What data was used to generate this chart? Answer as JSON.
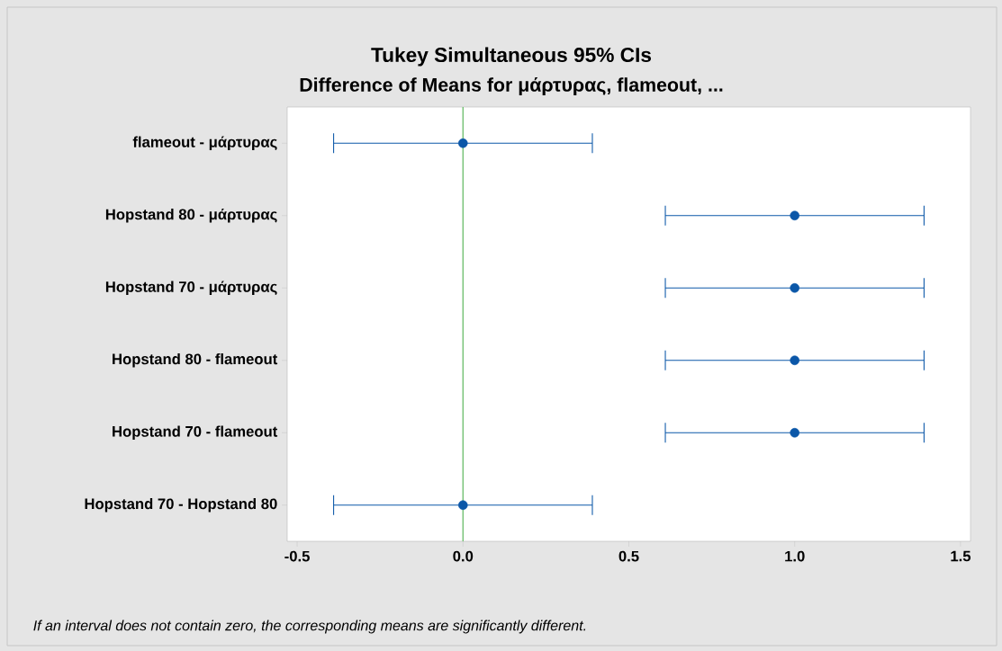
{
  "chart_data": {
    "type": "scatter",
    "orientation": "horizontal",
    "title": "Tukey Simultaneous 95% CIs",
    "subtitle": "Difference of Means for μάρτυρας, flameout, ...",
    "categories": [
      "flameout - μάρτυρας",
      "Hopstand 80 - μάρτυρας",
      "Hopstand 70 - μάρτυρας",
      "Hopstand 80 - flameout",
      "Hopstand 70 - flameout",
      "Hopstand 70 - Hopstand 80"
    ],
    "series": [
      {
        "color": "#0b57a8",
        "values": [
          0,
          1.0,
          1.0,
          1.0,
          1.0,
          0
        ],
        "errors": [
          0.39,
          0.39,
          0.39,
          0.39,
          0.39,
          0.39
        ]
      }
    ],
    "marker": "circle",
    "xlim": [
      -0.53,
      1.53
    ],
    "xticks": [
      -0.5,
      {
        "value": 0,
        "label": "0.0"
      },
      0.5,
      {
        "value": 1,
        "label": "1.0"
      },
      1.5
    ],
    "ref_lines": [
      {
        "axis": "x",
        "value": 0,
        "color": "#6dbf6d"
      }
    ],
    "annotations": [
      "If an interval does not contain zero, the corresponding means are significantly different."
    ]
  }
}
